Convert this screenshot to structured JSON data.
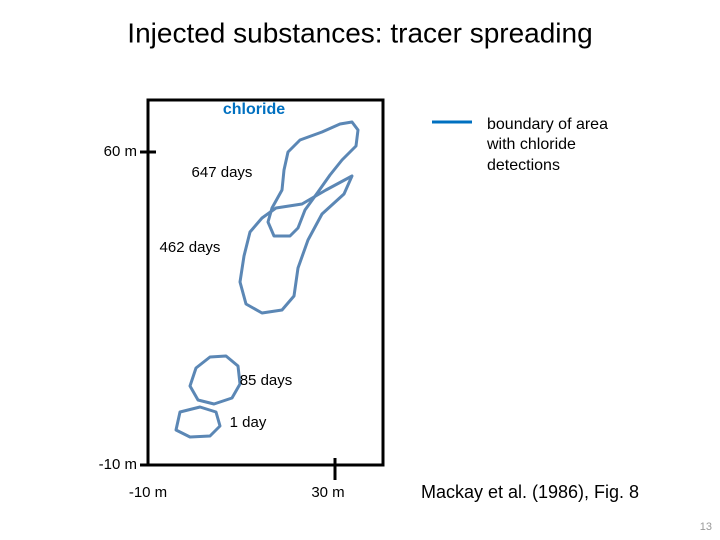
{
  "title": "Injected substances: tracer spreading",
  "panel": {
    "label": "chloride",
    "y_labels": [
      "60 m",
      "-10 m"
    ],
    "x_labels": [
      "-10 m",
      "30 m"
    ],
    "outlines": [
      "647 days",
      "462 days",
      "85 days",
      "1 day"
    ]
  },
  "legend": {
    "lines": [
      "boundary of area",
      "with chloride",
      "detections"
    ]
  },
  "citation": "Mackay et al. (1986), Fig. 8",
  "page_number": "13"
}
